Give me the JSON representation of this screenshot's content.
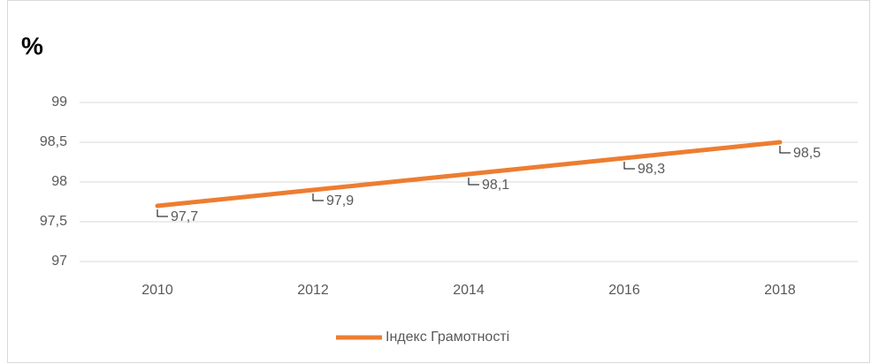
{
  "chart_data": {
    "type": "line",
    "title": "%",
    "categories": [
      "2010",
      "2012",
      "2014",
      "2016",
      "2018"
    ],
    "series": [
      {
        "name": "Індекс Грамотності",
        "color": "#ed7d31",
        "values": [
          97.7,
          97.9,
          98.1,
          98.3,
          98.5
        ],
        "value_labels": [
          "97,7",
          "97,9",
          "98,1",
          "98,3",
          "98,5"
        ]
      }
    ],
    "ylim": [
      97,
      99
    ],
    "yticks": [
      97,
      {
        "value": 97.5,
        "label": "97,5"
      },
      98,
      {
        "value": 98.5,
        "label": "98,5"
      },
      99
    ],
    "grid": true,
    "legend": "bottom"
  }
}
